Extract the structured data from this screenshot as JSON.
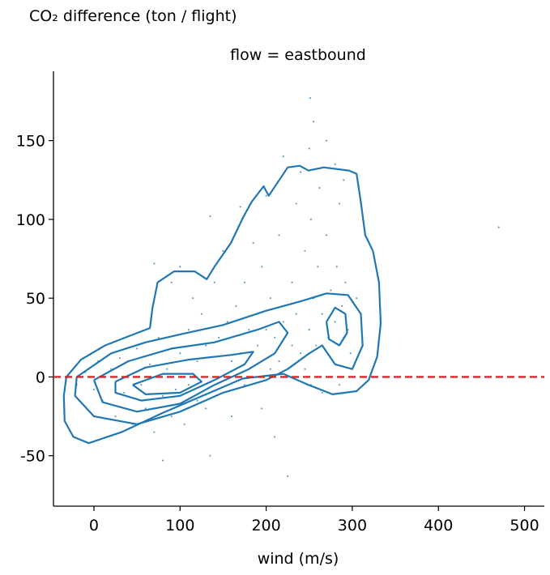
{
  "chart_data": {
    "type": "scatter",
    "ylabel": "CO₂ difference (ton / flight)",
    "title": "flow = eastbound",
    "xlabel": "wind (m/s)",
    "color": "#1f77b4",
    "xlim": [
      -47,
      523
    ],
    "ylim": [
      -82,
      194
    ],
    "xticks": [
      0,
      100,
      200,
      300,
      400,
      500
    ],
    "yticks": [
      -50,
      0,
      50,
      100,
      150
    ],
    "hline": 0,
    "hline_color": "#d62728",
    "x": [
      -20,
      -10,
      0,
      5,
      10,
      20,
      25,
      30,
      35,
      40,
      45,
      50,
      55,
      60,
      65,
      70,
      70,
      75,
      80,
      80,
      85,
      90,
      90,
      95,
      100,
      100,
      105,
      110,
      110,
      115,
      120,
      120,
      125,
      130,
      130,
      135,
      135,
      140,
      140,
      145,
      150,
      150,
      155,
      160,
      160,
      165,
      170,
      170,
      175,
      175,
      180,
      185,
      185,
      190,
      190,
      195,
      195,
      200,
      200,
      205,
      205,
      210,
      210,
      215,
      215,
      220,
      220,
      225,
      225,
      230,
      230,
      235,
      235,
      240,
      240,
      245,
      245,
      250,
      250,
      252,
      252,
      255,
      255,
      258,
      251,
      260,
      262,
      265,
      265,
      270,
      270,
      272,
      275,
      278,
      280,
      280,
      282,
      285,
      285,
      288,
      290,
      290,
      292,
      295,
      298,
      300,
      305,
      310,
      470
    ],
    "values": [
      -5,
      3,
      -8,
      10,
      -15,
      5,
      -25,
      12,
      -10,
      0,
      -30,
      18,
      -5,
      -20,
      8,
      72,
      -35,
      25,
      -53,
      -12,
      5,
      60,
      -25,
      -8,
      70,
      15,
      -30,
      30,
      -5,
      50,
      -15,
      10,
      40,
      -20,
      20,
      102,
      -50,
      0,
      60,
      25,
      80,
      -10,
      35,
      10,
      -25,
      45,
      108,
      15,
      -5,
      60,
      30,
      85,
      0,
      20,
      40,
      -20,
      70,
      115,
      30,
      5,
      50,
      -38,
      25,
      90,
      10,
      140,
      35,
      -63,
      0,
      60,
      20,
      110,
      40,
      130,
      15,
      5,
      80,
      145,
      30,
      100,
      -5,
      162,
      50,
      20,
      177,
      70,
      120,
      40,
      -10,
      150,
      90,
      25,
      55,
      10,
      135,
      35,
      70,
      -5,
      110,
      45,
      25,
      125,
      60,
      30,
      15,
      130,
      50,
      40,
      95
    ],
    "contours": [
      {
        "x": [
          -32,
          -15,
          13,
          41,
          65,
          68,
          74,
          93,
          117,
          131,
          140,
          159,
          173,
          183,
          197,
          203,
          225,
          239,
          249,
          267,
          296,
          305,
          310,
          315,
          324,
          331,
          333,
          329,
          319,
          305,
          277,
          249,
          220,
          173,
          126,
          79,
          32,
          -6,
          -24,
          -34,
          -35,
          -32
        ],
        "values": [
          0,
          11,
          20,
          26,
          31,
          44,
          60,
          67,
          67,
          62,
          70,
          85,
          101,
          111,
          121,
          115,
          133,
          134,
          131,
          133,
          131,
          129,
          111,
          90,
          80,
          60,
          34,
          13,
          -2,
          -9,
          -11,
          -5,
          2,
          -1,
          -12,
          -23,
          -35,
          -42,
          -38,
          -28,
          -12,
          0
        ]
      },
      {
        "x": [
          -20,
          20,
          60,
          100,
          150,
          200,
          240,
          270,
          295,
          310,
          312,
          300,
          280,
          265,
          250,
          225,
          200,
          150,
          100,
          50,
          0,
          -22,
          -20
        ],
        "values": [
          0,
          15,
          22,
          27,
          33,
          42,
          48,
          53,
          52,
          40,
          20,
          5,
          8,
          20,
          15,
          5,
          -2,
          -10,
          -22,
          -30,
          -25,
          -12,
          0
        ]
      },
      {
        "x": [
          0,
          40,
          90,
          140,
          190,
          215,
          225,
          210,
          180,
          140,
          100,
          50,
          10,
          0
        ],
        "values": [
          -2,
          10,
          18,
          22,
          30,
          35,
          28,
          15,
          5,
          -5,
          -17,
          -22,
          -16,
          -2
        ]
      },
      {
        "x": [
          25,
          60,
          110,
          160,
          185,
          175,
          140,
          100,
          55,
          25,
          25
        ],
        "values": [
          -3,
          6,
          11,
          14,
          16,
          8,
          -2,
          -12,
          -15,
          -10,
          -3
        ]
      },
      {
        "x": [
          45,
          80,
          115,
          125,
          100,
          60,
          45
        ],
        "values": [
          -5,
          2,
          2,
          -3,
          -10,
          -11,
          -5
        ]
      },
      {
        "x": [
          270,
          280,
          292,
          294,
          285,
          273,
          270
        ],
        "values": [
          35,
          44,
          40,
          28,
          20,
          24,
          35
        ]
      }
    ]
  }
}
